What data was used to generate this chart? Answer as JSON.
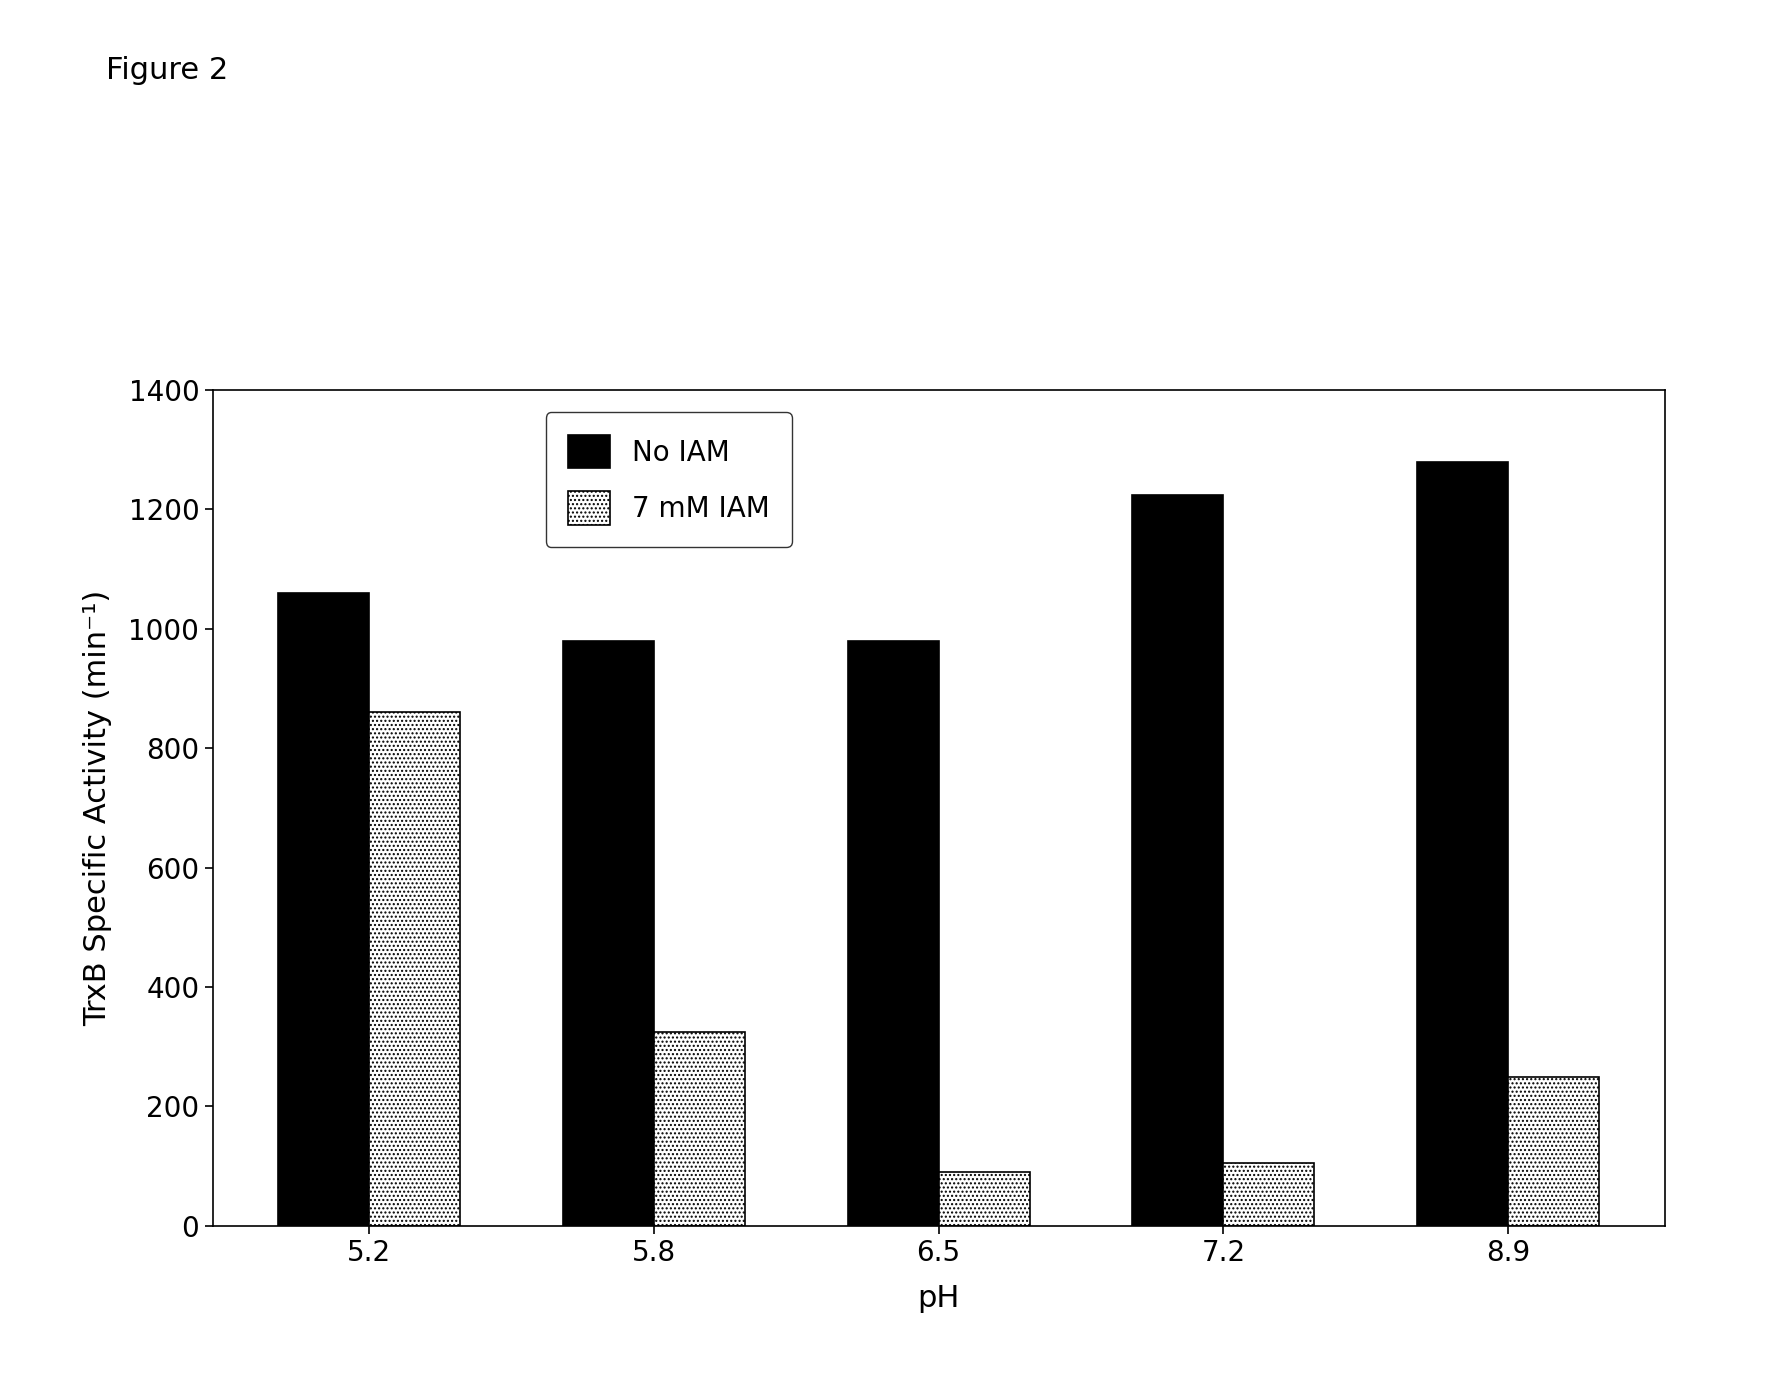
{
  "categories": [
    "5.2",
    "5.8",
    "6.5",
    "7.2",
    "8.9"
  ],
  "no_iam": [
    1060,
    980,
    980,
    1225,
    1280
  ],
  "iam": [
    860,
    325,
    90,
    105,
    250
  ],
  "ylabel": "TrxB Specific Activity (min⁻¹)",
  "xlabel": "pH",
  "title": "Figure 2",
  "ylim": [
    0,
    1400
  ],
  "yticks": [
    0,
    200,
    400,
    600,
    800,
    1000,
    1200,
    1400
  ],
  "legend_no_iam": "No IAM",
  "legend_iam": "7 mM IAM",
  "bar_color_no_iam": "#000000",
  "bar_color_iam": "#ffffff",
  "bar_hatch_iam": "....",
  "background_color": "#ffffff",
  "bar_width": 0.32,
  "title_fontsize": 22,
  "axis_label_fontsize": 22,
  "tick_fontsize": 20,
  "legend_fontsize": 20
}
